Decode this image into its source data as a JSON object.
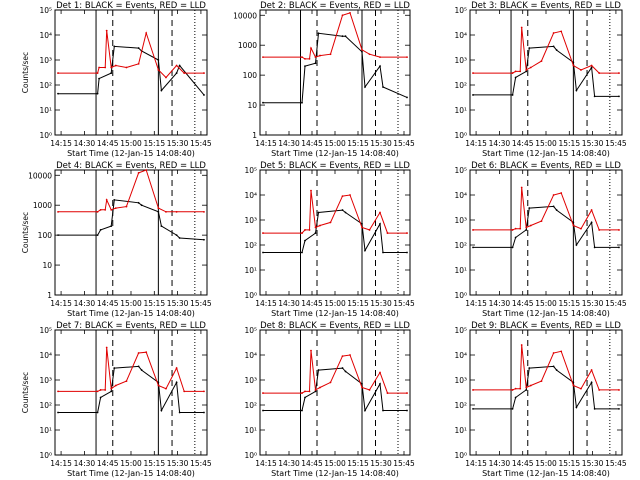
{
  "figure": {
    "background": "#ffffff",
    "axis_color": "#000000"
  },
  "series_colors": {
    "events": "#000000",
    "lld": "#e00000"
  },
  "time_ticks": [
    "14:15",
    "14:30",
    "14:45",
    "15:00",
    "15:15",
    "15:30",
    "15:45"
  ],
  "chart_data": [
    {
      "type": "line",
      "title": "Det 1: BLACK = Events, RED = LLD",
      "xlabel": "Start Time (12-Jan-15 14:08:40)",
      "ylabel": "Counts/sec",
      "y_scale": "log",
      "ylim": [
        1,
        100000
      ],
      "y_tick_labels": [
        "10⁰",
        "10¹",
        "10²",
        "10³",
        "10⁴",
        "10⁵"
      ],
      "x_tick_labels": [
        "14:15",
        "14:30",
        "14:45",
        "15:00",
        "15:15",
        "15:30",
        "15:45"
      ],
      "series": [
        {
          "name": "Events",
          "color": "#000000",
          "x": [
            0.02,
            0.28,
            0.29,
            0.37,
            0.39,
            0.55,
            0.57,
            0.68,
            0.7,
            0.8,
            0.82,
            0.98
          ],
          "y": [
            45,
            45,
            180,
            300,
            3500,
            3000,
            2300,
            1000,
            60,
            300,
            600,
            40
          ]
        },
        {
          "name": "LLD",
          "color": "#e00000",
          "x": [
            0.02,
            0.28,
            0.29,
            0.33,
            0.34,
            0.37,
            0.4,
            0.47,
            0.55,
            0.6,
            0.68,
            0.73,
            0.8,
            0.85,
            0.98
          ],
          "y": [
            300,
            300,
            500,
            500,
            15000,
            500,
            600,
            500,
            700,
            12000,
            400,
            200,
            600,
            300,
            300
          ]
        }
      ]
    },
    {
      "type": "line",
      "title": "Det 2: BLACK = Events, RED = LLD",
      "xlabel": "Start Time (12-Jan-15 14:08:40)",
      "ylabel": "",
      "y_scale": "log",
      "ylim": [
        1,
        15000
      ],
      "y_tick_labels": [
        "1",
        "10",
        "100",
        "1000",
        "10000"
      ],
      "x_tick_labels": [
        "14:15",
        "14:30",
        "14:45",
        "15:00",
        "15:15",
        "15:30",
        "15:45"
      ],
      "series": [
        {
          "name": "Events",
          "color": "#000000",
          "x": [
            0.02,
            0.28,
            0.3,
            0.37,
            0.39,
            0.55,
            0.57,
            0.68,
            0.7,
            0.8,
            0.82,
            0.98
          ],
          "y": [
            12,
            12,
            200,
            250,
            2500,
            2000,
            2000,
            600,
            40,
            200,
            40,
            18
          ]
        },
        {
          "name": "LLD",
          "color": "#e00000",
          "x": [
            0.02,
            0.28,
            0.3,
            0.33,
            0.34,
            0.37,
            0.4,
            0.47,
            0.55,
            0.6,
            0.68,
            0.73,
            0.8,
            0.98
          ],
          "y": [
            400,
            400,
            350,
            350,
            800,
            400,
            450,
            500,
            10000,
            12000,
            700,
            500,
            400,
            400
          ]
        }
      ]
    },
    {
      "type": "line",
      "title": "Det 3: BLACK = Events, RED = LLD",
      "xlabel": "Start Time (12-Jan-15 14:08:40)",
      "ylabel": "",
      "y_scale": "log",
      "ylim": [
        1,
        100000
      ],
      "y_tick_labels": [
        "10⁰",
        "10¹",
        "10²",
        "10³",
        "10⁴",
        "10⁵"
      ],
      "x_tick_labels": [
        "14:15",
        "14:30",
        "14:45",
        "15:00",
        "15:15",
        "15:30",
        "15:45"
      ],
      "series": [
        {
          "name": "Events",
          "color": "#000000",
          "x": [
            0.02,
            0.28,
            0.3,
            0.37,
            0.39,
            0.55,
            0.57,
            0.68,
            0.7,
            0.8,
            0.82,
            0.98
          ],
          "y": [
            40,
            40,
            200,
            350,
            3000,
            3500,
            2500,
            800,
            60,
            500,
            35,
            35
          ]
        },
        {
          "name": "LLD",
          "color": "#e00000",
          "x": [
            0.02,
            0.28,
            0.3,
            0.33,
            0.34,
            0.37,
            0.4,
            0.47,
            0.55,
            0.6,
            0.68,
            0.73,
            0.8,
            0.85,
            0.98
          ],
          "y": [
            300,
            300,
            350,
            350,
            20000,
            400,
            500,
            900,
            12000,
            14000,
            600,
            400,
            600,
            300,
            300
          ]
        }
      ]
    },
    {
      "type": "line",
      "title": "Det 4: BLACK = Events, RED = LLD",
      "xlabel": "Start Time (12-Jan-15 14:08:40)",
      "ylabel": "Counts/sec",
      "y_scale": "log",
      "ylim": [
        1,
        15000
      ],
      "y_tick_labels": [
        "1",
        "10",
        "100",
        "1000",
        "10000"
      ],
      "x_tick_labels": [
        "14:15",
        "14:30",
        "14:45",
        "15:00",
        "15:15",
        "15:30",
        "15:45"
      ],
      "series": [
        {
          "name": "Events",
          "color": "#000000",
          "x": [
            0.02,
            0.28,
            0.3,
            0.37,
            0.39,
            0.55,
            0.57,
            0.68,
            0.7,
            0.8,
            0.82,
            0.98
          ],
          "y": [
            100,
            100,
            150,
            200,
            1500,
            1200,
            1000,
            600,
            200,
            100,
            80,
            70
          ]
        },
        {
          "name": "LLD",
          "color": "#e00000",
          "x": [
            0.02,
            0.28,
            0.3,
            0.33,
            0.34,
            0.37,
            0.4,
            0.47,
            0.55,
            0.6,
            0.68,
            0.73,
            0.8,
            0.98
          ],
          "y": [
            600,
            600,
            700,
            700,
            1500,
            700,
            800,
            900,
            12000,
            15000,
            800,
            600,
            600,
            600
          ]
        }
      ]
    },
    {
      "type": "line",
      "title": "Det 5: BLACK = Events, RED = LLD",
      "xlabel": "Start Time (12-Jan-15 14:08:40)",
      "ylabel": "",
      "y_scale": "log",
      "ylim": [
        1,
        100000
      ],
      "y_tick_labels": [
        "10⁰",
        "10¹",
        "10²",
        "10³",
        "10⁴",
        "10⁵"
      ],
      "x_tick_labels": [
        "14:15",
        "14:30",
        "14:45",
        "15:00",
        "15:15",
        "15:30",
        "15:45"
      ],
      "series": [
        {
          "name": "Events",
          "color": "#000000",
          "x": [
            0.02,
            0.28,
            0.3,
            0.37,
            0.39,
            0.55,
            0.57,
            0.68,
            0.7,
            0.8,
            0.82,
            0.98
          ],
          "y": [
            50,
            50,
            150,
            300,
            2000,
            2500,
            2000,
            700,
            60,
            700,
            50,
            50
          ]
        },
        {
          "name": "LLD",
          "color": "#e00000",
          "x": [
            0.02,
            0.28,
            0.3,
            0.33,
            0.34,
            0.37,
            0.4,
            0.47,
            0.55,
            0.6,
            0.68,
            0.73,
            0.8,
            0.85,
            0.98
          ],
          "y": [
            300,
            300,
            400,
            400,
            15000,
            500,
            600,
            800,
            9000,
            10000,
            500,
            400,
            2000,
            300,
            300
          ]
        }
      ]
    },
    {
      "type": "line",
      "title": "Det 6: BLACK = Events, RED = LLD",
      "xlabel": "Start Time (12-Jan-15 14:08:40)",
      "ylabel": "",
      "y_scale": "log",
      "ylim": [
        1,
        100000
      ],
      "y_tick_labels": [
        "10⁰",
        "10¹",
        "10²",
        "10³",
        "10⁴",
        "10⁵"
      ],
      "x_tick_labels": [
        "14:15",
        "14:30",
        "14:45",
        "15:00",
        "15:15",
        "15:30",
        "15:45"
      ],
      "series": [
        {
          "name": "Events",
          "color": "#000000",
          "x": [
            0.02,
            0.28,
            0.3,
            0.37,
            0.39,
            0.55,
            0.57,
            0.68,
            0.7,
            0.8,
            0.82,
            0.98
          ],
          "y": [
            80,
            80,
            200,
            400,
            3000,
            3500,
            2500,
            800,
            100,
            800,
            80,
            80
          ]
        },
        {
          "name": "LLD",
          "color": "#e00000",
          "x": [
            0.02,
            0.28,
            0.3,
            0.33,
            0.34,
            0.37,
            0.4,
            0.47,
            0.55,
            0.6,
            0.68,
            0.73,
            0.8,
            0.85,
            0.98
          ],
          "y": [
            400,
            400,
            450,
            450,
            20000,
            500,
            600,
            900,
            10000,
            12000,
            600,
            450,
            2500,
            400,
            400
          ]
        }
      ]
    },
    {
      "type": "line",
      "title": "Det 7: BLACK = Events, RED = LLD",
      "xlabel": "Start Time (12-Jan-15 14:08:40)",
      "ylabel": "Counts/sec",
      "y_scale": "log",
      "ylim": [
        1,
        100000
      ],
      "y_tick_labels": [
        "10⁰",
        "10¹",
        "10²",
        "10³",
        "10⁴",
        "10⁵"
      ],
      "x_tick_labels": [
        "14:15",
        "14:30",
        "14:45",
        "15:00",
        "15:15",
        "15:30",
        "15:45"
      ],
      "series": [
        {
          "name": "Events",
          "color": "#000000",
          "x": [
            0.02,
            0.28,
            0.3,
            0.37,
            0.39,
            0.55,
            0.57,
            0.68,
            0.7,
            0.8,
            0.82,
            0.98
          ],
          "y": [
            50,
            50,
            200,
            350,
            3000,
            3500,
            2500,
            800,
            60,
            800,
            50,
            50
          ]
        },
        {
          "name": "LLD",
          "color": "#e00000",
          "x": [
            0.02,
            0.28,
            0.3,
            0.33,
            0.34,
            0.37,
            0.4,
            0.47,
            0.55,
            0.6,
            0.68,
            0.73,
            0.8,
            0.85,
            0.98
          ],
          "y": [
            350,
            350,
            400,
            400,
            20000,
            450,
            600,
            900,
            12000,
            13000,
            600,
            450,
            3000,
            350,
            350
          ]
        }
      ]
    },
    {
      "type": "line",
      "title": "Det 8: BLACK = Events, RED = LLD",
      "xlabel": "Start Time (12-Jan-15 14:08:40)",
      "ylabel": "",
      "y_scale": "log",
      "ylim": [
        1,
        100000
      ],
      "y_tick_labels": [
        "10⁰",
        "10¹",
        "10²",
        "10³",
        "10⁴",
        "10⁵"
      ],
      "x_tick_labels": [
        "14:15",
        "14:30",
        "14:45",
        "15:00",
        "15:15",
        "15:30",
        "15:45"
      ],
      "series": [
        {
          "name": "Events",
          "color": "#000000",
          "x": [
            0.02,
            0.28,
            0.3,
            0.37,
            0.39,
            0.55,
            0.57,
            0.68,
            0.7,
            0.8,
            0.82,
            0.98
          ],
          "y": [
            60,
            60,
            200,
            350,
            2500,
            3000,
            2200,
            700,
            60,
            700,
            60,
            60
          ]
        },
        {
          "name": "LLD",
          "color": "#e00000",
          "x": [
            0.02,
            0.28,
            0.3,
            0.33,
            0.34,
            0.37,
            0.4,
            0.47,
            0.55,
            0.6,
            0.68,
            0.73,
            0.8,
            0.85,
            0.98
          ],
          "y": [
            300,
            300,
            350,
            350,
            15000,
            400,
            500,
            800,
            9000,
            10000,
            500,
            400,
            2000,
            300,
            300
          ]
        }
      ]
    },
    {
      "type": "line",
      "title": "Det 9: BLACK = Events, RED = LLD",
      "xlabel": "Start Time (12-Jan-15 14:08:40)",
      "ylabel": "",
      "y_scale": "log",
      "ylim": [
        1,
        100000
      ],
      "y_tick_labels": [
        "10⁰",
        "10¹",
        "10²",
        "10³",
        "10⁴",
        "10⁵"
      ],
      "x_tick_labels": [
        "14:15",
        "14:30",
        "14:45",
        "15:00",
        "15:15",
        "15:30",
        "15:45"
      ],
      "series": [
        {
          "name": "Events",
          "color": "#000000",
          "x": [
            0.02,
            0.28,
            0.3,
            0.37,
            0.39,
            0.55,
            0.57,
            0.68,
            0.7,
            0.8,
            0.82,
            0.98
          ],
          "y": [
            70,
            70,
            200,
            400,
            3000,
            3500,
            2500,
            800,
            80,
            800,
            70,
            70
          ]
        },
        {
          "name": "LLD",
          "color": "#e00000",
          "x": [
            0.02,
            0.28,
            0.3,
            0.33,
            0.34,
            0.37,
            0.4,
            0.47,
            0.55,
            0.6,
            0.68,
            0.73,
            0.8,
            0.85,
            0.98
          ],
          "y": [
            400,
            400,
            450,
            450,
            25000,
            500,
            600,
            900,
            12000,
            14000,
            600,
            450,
            2500,
            400,
            400
          ]
        }
      ]
    }
  ],
  "interval_markers": {
    "solid": [
      0.27,
      0.68
    ],
    "dashed": [
      0.38,
      0.77
    ],
    "dotted": [
      0.92
    ]
  }
}
